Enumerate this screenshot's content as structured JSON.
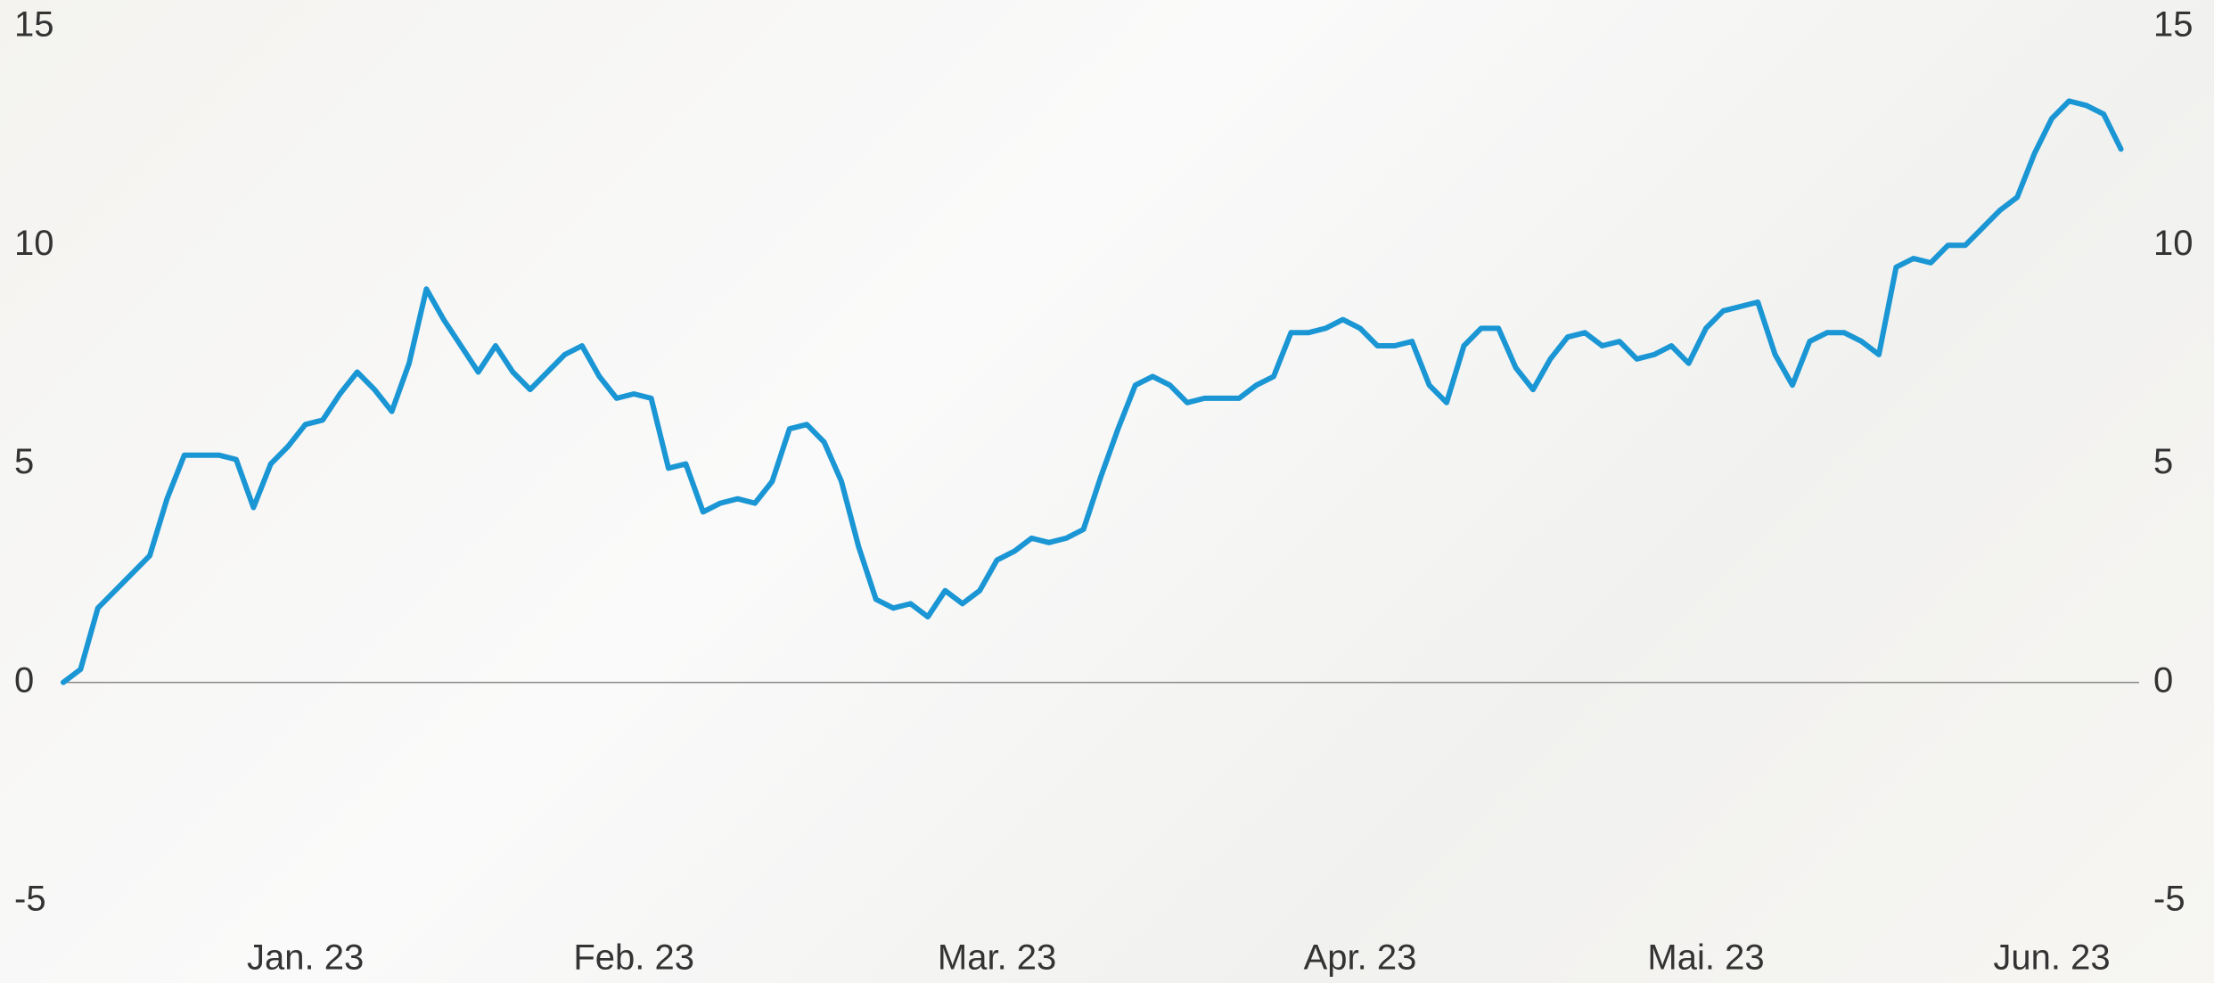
{
  "chart_data": {
    "type": "line",
    "categories": [
      null,
      null,
      null,
      null,
      null,
      null,
      null,
      null,
      null,
      null,
      null,
      null,
      null,
      null,
      "Jan. 23",
      null,
      null,
      null,
      null,
      null,
      null,
      null,
      null,
      null,
      null,
      null,
      null,
      null,
      null,
      null,
      null,
      null,
      null,
      "Feb. 23",
      null,
      null,
      null,
      null,
      null,
      null,
      null,
      null,
      null,
      null,
      null,
      null,
      null,
      null,
      null,
      null,
      null,
      null,
      null,
      null,
      "Mar. 23",
      null,
      null,
      null,
      null,
      null,
      null,
      null,
      null,
      null,
      null,
      null,
      null,
      null,
      null,
      null,
      null,
      null,
      null,
      null,
      null,
      "Apr. 23",
      null,
      null,
      null,
      null,
      null,
      null,
      null,
      null,
      null,
      null,
      null,
      null,
      null,
      null,
      null,
      null,
      null,
      null,
      null,
      "Mai. 23",
      null,
      null,
      null,
      null,
      null,
      null,
      null,
      null,
      null,
      null,
      null,
      null,
      null,
      null,
      null,
      null,
      null,
      null,
      null,
      "Jun. 23",
      null,
      null,
      null,
      null
    ],
    "series": [
      {
        "color": "#1a96d4",
        "values": [
          0,
          0.3,
          1.7,
          2.1,
          2.5,
          2.9,
          4.2,
          5.2,
          5.2,
          5.2,
          5.1,
          4.0,
          5.0,
          5.4,
          5.9,
          6.0,
          6.6,
          7.1,
          6.7,
          6.2,
          7.3,
          9.0,
          8.3,
          7.7,
          7.1,
          7.7,
          7.1,
          6.7,
          7.1,
          7.5,
          7.7,
          7.0,
          6.5,
          6.6,
          6.5,
          4.9,
          5.0,
          3.9,
          4.1,
          4.2,
          4.1,
          4.6,
          5.8,
          5.9,
          5.5,
          4.6,
          3.1,
          1.9,
          1.7,
          1.8,
          1.5,
          2.1,
          1.8,
          2.1,
          2.8,
          3.0,
          3.3,
          3.2,
          3.3,
          3.5,
          4.7,
          5.8,
          6.8,
          7.0,
          6.8,
          6.4,
          6.5,
          6.5,
          6.5,
          6.8,
          7.0,
          8.0,
          8.0,
          8.1,
          8.3,
          8.1,
          7.7,
          7.7,
          7.8,
          6.8,
          6.4,
          7.7,
          8.1,
          8.1,
          7.2,
          6.7,
          7.4,
          7.9,
          8.0,
          7.7,
          7.8,
          7.4,
          7.5,
          7.7,
          7.3,
          8.1,
          8.5,
          8.6,
          8.7,
          7.5,
          6.8,
          7.8,
          8.0,
          8.0,
          7.8,
          7.5,
          9.5,
          9.7,
          9.6,
          10.0,
          10.0,
          10.4,
          10.8,
          11.1,
          12.1,
          12.9,
          13.3,
          13.2,
          13.0,
          12.2
        ]
      }
    ],
    "ylim": [
      -6,
      15
    ],
    "yticks": [
      15,
      10,
      5,
      0,
      -5
    ],
    "zero_line": true
  }
}
